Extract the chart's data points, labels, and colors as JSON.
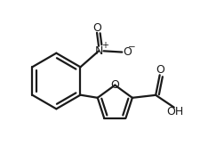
{
  "background": "#ffffff",
  "line_color": "#1a1a1a",
  "line_width": 1.6,
  "font_size": 8.5,
  "fig_width": 2.52,
  "fig_height": 1.82,
  "dpi": 100,
  "xlim": [
    0,
    10
  ],
  "ylim": [
    0,
    7.2
  ]
}
